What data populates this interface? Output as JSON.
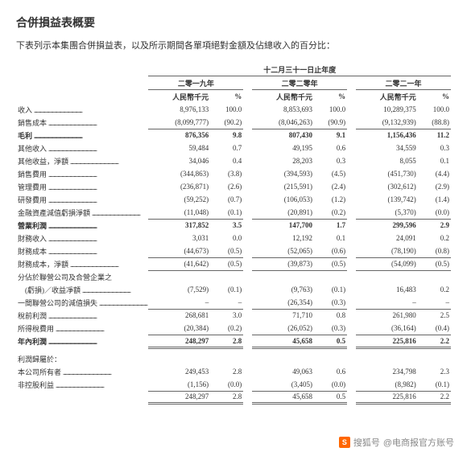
{
  "title": "合併損益表概要",
  "subtitle": "下表列示本集團合併損益表，以及所示期間各單項絕對金額及佔總收入的百分比：",
  "period_header": "十二月三十一日止年度",
  "years": [
    "二零一九年",
    "二零二零年",
    "二零二一年"
  ],
  "unit": "人民幣千元",
  "pct_sym": "%",
  "rows": [
    {
      "label": "收入",
      "v": [
        "8,976,133",
        "100.0",
        "8,853,693",
        "100.0",
        "10,289,375",
        "100.0"
      ],
      "bold": false
    },
    {
      "label": "銷售成本",
      "v": [
        "(8,099,777)",
        "(90.2)",
        "(8,046,263)",
        "(90.9)",
        "(9,132,939)",
        "(88.8)"
      ],
      "ul": true
    },
    {
      "label": "毛利",
      "v": [
        "876,356",
        "9.8",
        "807,430",
        "9.1",
        "1,156,436",
        "11.2"
      ],
      "bold": true
    },
    {
      "label": "其他收入",
      "v": [
        "59,484",
        "0.7",
        "49,195",
        "0.6",
        "34,559",
        "0.3"
      ]
    },
    {
      "label": "其他收益，淨額",
      "v": [
        "34,046",
        "0.4",
        "28,203",
        "0.3",
        "8,055",
        "0.1"
      ]
    },
    {
      "label": "銷售費用",
      "v": [
        "(344,863)",
        "(3.8)",
        "(394,593)",
        "(4.5)",
        "(451,730)",
        "(4.4)"
      ]
    },
    {
      "label": "管理費用",
      "v": [
        "(236,871)",
        "(2.6)",
        "(215,591)",
        "(2.4)",
        "(302,612)",
        "(2.9)"
      ]
    },
    {
      "label": "研發費用",
      "v": [
        "(59,252)",
        "(0.7)",
        "(106,053)",
        "(1.2)",
        "(139,742)",
        "(1.4)"
      ]
    },
    {
      "label": "金融資產減值虧損淨額",
      "v": [
        "(11,048)",
        "(0.1)",
        "(20,891)",
        "(0.2)",
        "(5,370)",
        "(0.0)"
      ],
      "ul": true
    },
    {
      "label": "營業利潤",
      "v": [
        "317,852",
        "3.5",
        "147,700",
        "1.7",
        "299,596",
        "2.9"
      ],
      "bold": true
    },
    {
      "label": "財務收入",
      "v": [
        "3,031",
        "0.0",
        "12,192",
        "0.1",
        "24,091",
        "0.2"
      ]
    },
    {
      "label": "財務成本",
      "v": [
        "(44,673)",
        "(0.5)",
        "(52,065)",
        "(0.6)",
        "(78,190)",
        "(0.8)"
      ],
      "ul": true
    },
    {
      "label": "財務成本，淨額",
      "v": [
        "(41,642)",
        "(0.5)",
        "(39,873)",
        "(0.5)",
        "(54,099)",
        "(0.5)"
      ],
      "ul": true
    }
  ],
  "assoc_label_1": "分佔於聯營公司及合營企業之",
  "assoc_label_2": "　(虧損)／收益凈額",
  "assoc_v": [
    "(7,529)",
    "(0.1)",
    "(9,763)",
    "(0.1)",
    "16,483",
    "0.2"
  ],
  "impair_label": "一間聯營公司的減值損失",
  "impair_v": [
    "–",
    "–",
    "(26,354)",
    "(0.3)",
    "–",
    "–"
  ],
  "rows2": [
    {
      "label": "稅前利潤",
      "v": [
        "268,681",
        "3.0",
        "71,710",
        "0.8",
        "261,980",
        "2.5"
      ]
    },
    {
      "label": "所得稅費用",
      "v": [
        "(20,384)",
        "(0.2)",
        "(26,052)",
        "(0.3)",
        "(36,164)",
        "(0.4)"
      ],
      "ul": true
    },
    {
      "label": "年內利潤",
      "v": [
        "248,297",
        "2.8",
        "45,658",
        "0.5",
        "225,816",
        "2.2"
      ],
      "bold": true,
      "dbl": true
    }
  ],
  "attrib_header": "利潤歸屬於：",
  "rows3": [
    {
      "label": "本公司所有者",
      "v": [
        "249,453",
        "2.8",
        "49,063",
        "0.6",
        "234,798",
        "2.3"
      ]
    },
    {
      "label": "非控股利益",
      "v": [
        "(1,156)",
        "(0.0)",
        "(3,405)",
        "(0.0)",
        "(8,982)",
        "(0.1)"
      ],
      "ul": true
    },
    {
      "label": "",
      "v": [
        "248,297",
        "2.8",
        "45,658",
        "0.5",
        "225,816",
        "2.2"
      ],
      "dbl": true
    }
  ],
  "watermark_prefix": "搜狐号",
  "watermark_account": "@电商报官方账号"
}
